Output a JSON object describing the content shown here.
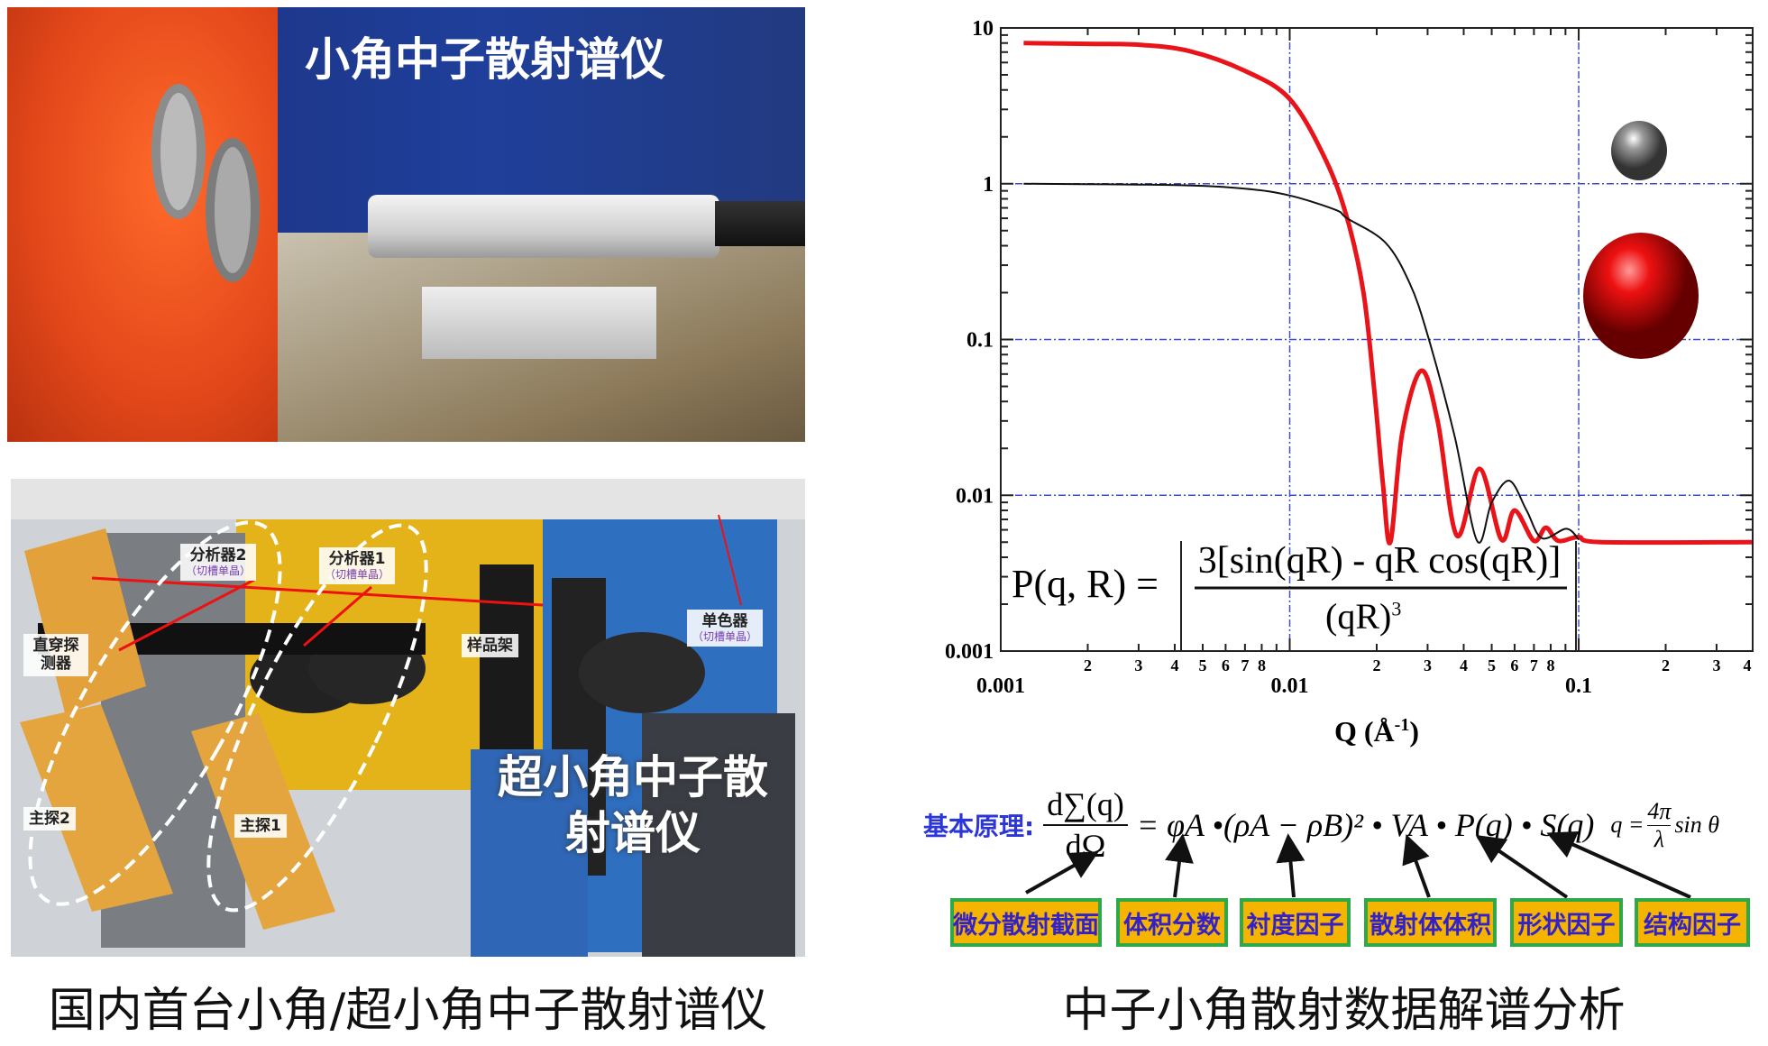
{
  "top_photo": {
    "title": "小角中子散射谱仪"
  },
  "bottom_photo": {
    "title_line1": "超小角中子散",
    "title_line2": "射谱仪",
    "labels": [
      {
        "name": "分析器2",
        "sub": "（切槽单晶）"
      },
      {
        "name": "分析器1",
        "sub": "（切槽单晶）"
      },
      {
        "name": "直穿探测器",
        "sub": ""
      },
      {
        "name": "样品架",
        "sub": ""
      },
      {
        "name": "单色器",
        "sub": "（切槽单晶）"
      },
      {
        "name": "主探2",
        "sub": ""
      },
      {
        "name": "主探1",
        "sub": ""
      }
    ]
  },
  "left_caption": "国内首台小角/超小角中子散射谱仪",
  "right_caption": "中子小角散射数据解谱分析",
  "chart_data": {
    "type": "line",
    "xscale": "log",
    "yscale": "log",
    "xlim": [
      0.001,
      0.4
    ],
    "ylim": [
      0.001,
      10
    ],
    "xlabel": "Q (Å",
    "xlabel_sup": "-1",
    "xlabel_end": ")",
    "ylabel": "",
    "x_major_ticks": [
      "0.001",
      "0.01",
      "0.1"
    ],
    "x_minor_labels": [
      "2",
      "3",
      "4",
      "5",
      "6",
      "7",
      "8"
    ],
    "y_major_ticks": [
      "10",
      "1",
      "0.1",
      "0.01",
      "0.001"
    ],
    "grid": "dash-dot blue at major ticks",
    "colors": {
      "large_sphere": "#e8141a",
      "small_sphere": "#111111",
      "grid": "#3b4fd0"
    },
    "series": [
      {
        "color": "#e8141a",
        "x": [
          0.0012,
          0.002,
          0.003,
          0.0045,
          0.007,
          0.01,
          0.0133,
          0.0158,
          0.018,
          0.0196,
          0.021,
          0.0223,
          0.0245,
          0.0285,
          0.0325,
          0.0379,
          0.0454,
          0.054,
          0.06,
          0.07,
          0.077,
          0.085,
          0.1,
          0.12,
          0.4
        ],
        "y": [
          8,
          7.9,
          7.8,
          7.1,
          5.3,
          3.5,
          1.43,
          0.6,
          0.2,
          0.048,
          0.012,
          0.005,
          0.025,
          0.063,
          0.03,
          0.0055,
          0.0148,
          0.0052,
          0.008,
          0.0051,
          0.0062,
          0.0051,
          0.0054,
          0.005,
          0.005
        ]
      },
      {
        "color": "#111111",
        "x": [
          0.0012,
          0.004,
          0.007,
          0.01,
          0.0144,
          0.0158,
          0.0214,
          0.026,
          0.03,
          0.0372,
          0.0445,
          0.05,
          0.0576,
          0.066,
          0.0746,
          0.0906,
          0.1
        ],
        "y": [
          1,
          0.98,
          0.93,
          0.84,
          0.68,
          0.6,
          0.42,
          0.23,
          0.107,
          0.024,
          0.0051,
          0.009,
          0.0124,
          0.008,
          0.0053,
          0.0061,
          0.0052
        ]
      }
    ],
    "formula": {
      "lhs": "P(q, R) =",
      "numerator": "3[sin(qR) - qR cos(qR)]",
      "denominator": "(qR)",
      "den_exp": "3"
    }
  },
  "principle": {
    "label": "基本原理:",
    "lhs_num": "d∑(q)",
    "lhs_den": "dΩ",
    "rhs": "= φA •(ρA − ρB)² • VA • P(q) • S(q)",
    "q_def_lhs": "q =",
    "q_def_num": "4π",
    "q_def_den": "λ",
    "q_def_rhs": "sin θ",
    "terms": [
      "微分散射截面",
      "体积分数",
      "衬度因子",
      "散射体体积",
      "形状因子",
      "结构因子"
    ]
  }
}
